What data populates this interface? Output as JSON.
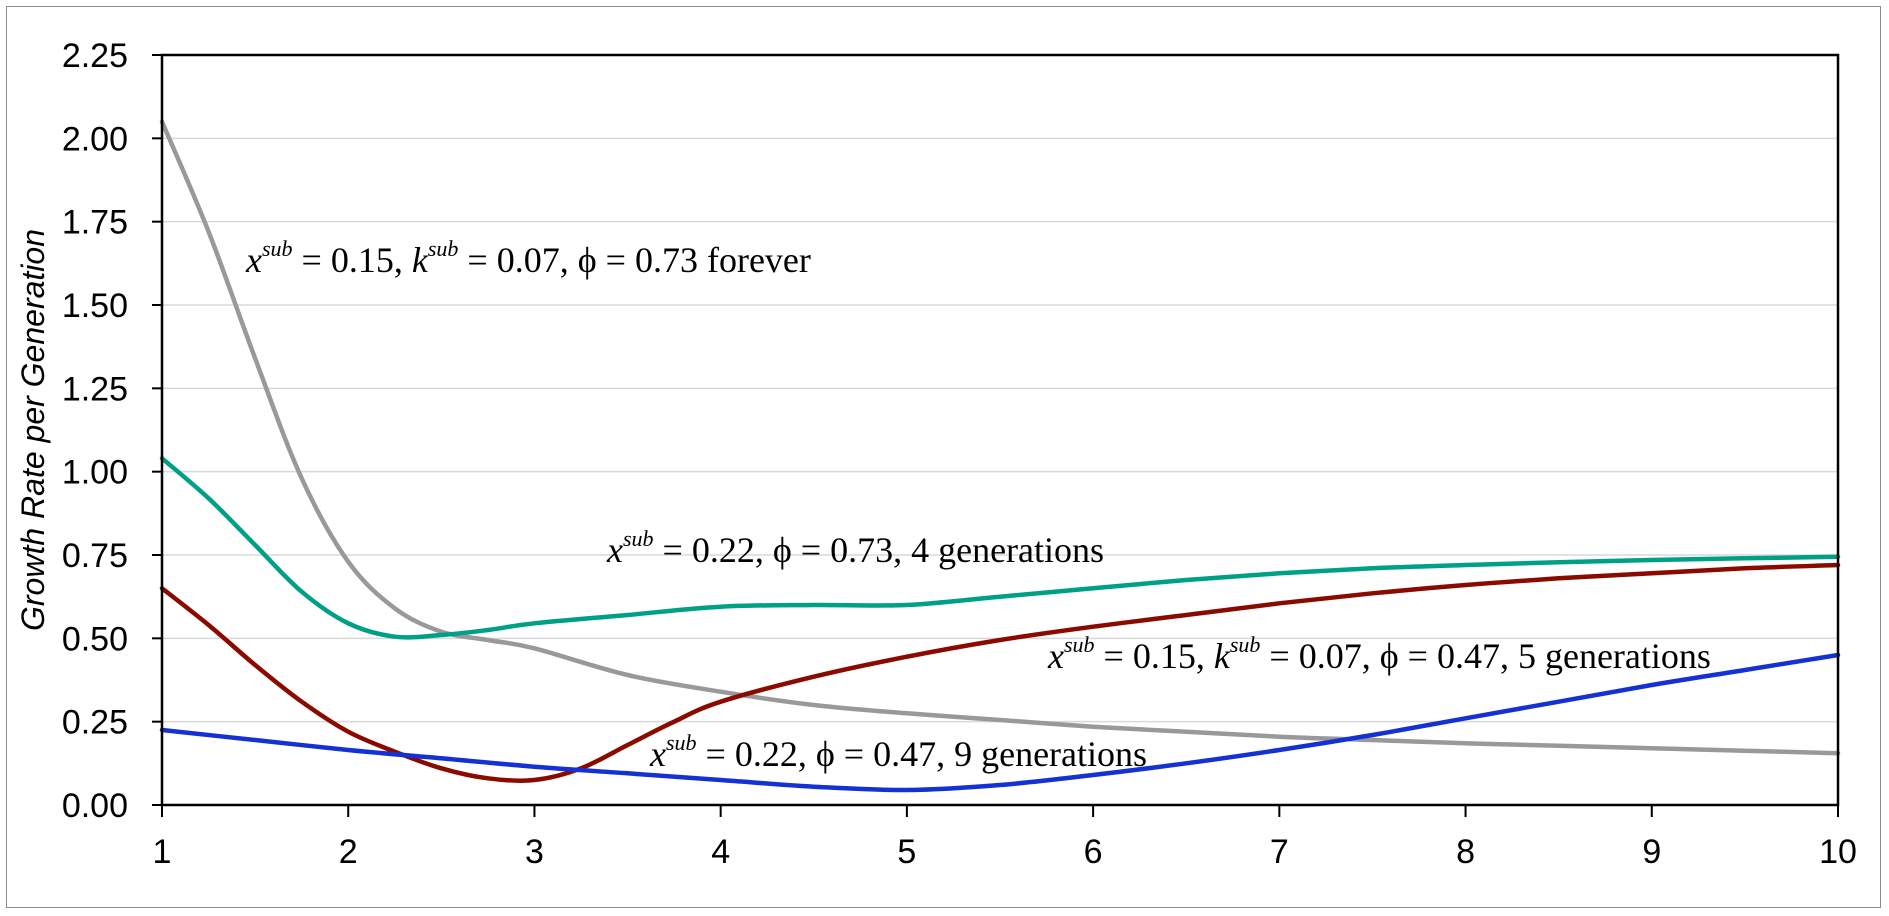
{
  "chart_data": {
    "type": "line",
    "title": "",
    "xlabel": "",
    "ylabel": "Growth Rate per Generation",
    "xlim": [
      1,
      10
    ],
    "ylim": [
      0,
      2.25
    ],
    "x_ticks": [
      "1",
      "2",
      "3",
      "4",
      "5",
      "6",
      "7",
      "8",
      "9",
      "10"
    ],
    "y_ticks": [
      "0.00",
      "0.25",
      "0.50",
      "0.75",
      "1.00",
      "1.25",
      "1.50",
      "1.75",
      "2.00",
      "2.25"
    ],
    "grid": "horizontal",
    "legend": "none",
    "series": [
      {
        "color": "#999999",
        "x": [
          1,
          1.25,
          1.5,
          1.75,
          2,
          2.25,
          2.5,
          2.75,
          3,
          3.5,
          4,
          4.5,
          5,
          5.5,
          6,
          6.5,
          7,
          7.5,
          8,
          8.5,
          9,
          9.5,
          10
        ],
        "y": [
          2.05,
          1.72,
          1.34,
          0.98,
          0.73,
          0.59,
          0.52,
          0.495,
          0.47,
          0.39,
          0.34,
          0.3,
          0.275,
          0.255,
          0.235,
          0.22,
          0.205,
          0.195,
          0.185,
          0.178,
          0.17,
          0.163,
          0.155
        ]
      },
      {
        "color": "#00A087",
        "x": [
          1,
          1.25,
          1.5,
          1.75,
          2,
          2.25,
          2.5,
          2.75,
          3,
          3.5,
          4,
          4.5,
          5,
          5.5,
          6,
          6.5,
          7,
          7.5,
          8,
          8.5,
          9,
          9.5,
          10
        ],
        "y": [
          1.04,
          0.92,
          0.78,
          0.64,
          0.545,
          0.505,
          0.51,
          0.525,
          0.545,
          0.57,
          0.595,
          0.6,
          0.6,
          0.625,
          0.65,
          0.675,
          0.695,
          0.71,
          0.72,
          0.728,
          0.735,
          0.74,
          0.745
        ]
      },
      {
        "color": "#8B0A00",
        "x": [
          1,
          1.25,
          1.5,
          1.75,
          2,
          2.25,
          2.5,
          2.75,
          3,
          3.25,
          3.5,
          3.75,
          4,
          4.5,
          5,
          5.5,
          6,
          6.5,
          7,
          7.5,
          8,
          8.5,
          9,
          9.5,
          10
        ],
        "y": [
          0.65,
          0.54,
          0.42,
          0.31,
          0.22,
          0.16,
          0.11,
          0.08,
          0.075,
          0.11,
          0.18,
          0.25,
          0.31,
          0.385,
          0.445,
          0.495,
          0.535,
          0.57,
          0.605,
          0.635,
          0.66,
          0.68,
          0.695,
          0.71,
          0.72
        ]
      },
      {
        "color": "#1431D4",
        "x": [
          1,
          1.5,
          2,
          2.5,
          3,
          3.5,
          4,
          4.5,
          5,
          5.5,
          6,
          6.5,
          7,
          7.5,
          8,
          8.5,
          9,
          9.5,
          10
        ],
        "y": [
          0.225,
          0.195,
          0.165,
          0.14,
          0.115,
          0.095,
          0.075,
          0.055,
          0.045,
          0.06,
          0.09,
          0.125,
          0.165,
          0.21,
          0.26,
          0.31,
          0.36,
          0.405,
          0.45
        ]
      }
    ],
    "annotations": [
      {
        "parts": [
          [
            "x",
            "it"
          ],
          [
            "sub",
            "sup"
          ],
          [
            " = 0.15, ",
            ""
          ],
          [
            "k",
            "it"
          ],
          [
            "sub",
            "sup"
          ],
          [
            " = 0.07, ϕ = 0.73 forever",
            ""
          ]
        ]
      },
      {
        "parts": [
          [
            "x",
            "it"
          ],
          [
            "sub",
            "sup"
          ],
          [
            " = 0.22, ϕ = 0.73, 4 generations",
            ""
          ]
        ]
      },
      {
        "parts": [
          [
            "x",
            "it"
          ],
          [
            "sub",
            "sup"
          ],
          [
            " = 0.15, ",
            ""
          ],
          [
            "k",
            "it"
          ],
          [
            "sub",
            "sup"
          ],
          [
            " = 0.07, ϕ = 0.47, 5 generations",
            ""
          ]
        ]
      },
      {
        "parts": [
          [
            "x",
            "it"
          ],
          [
            "sub",
            "sup"
          ],
          [
            " = 0.22, ϕ = 0.47, 9 generations",
            ""
          ]
        ]
      }
    ]
  }
}
